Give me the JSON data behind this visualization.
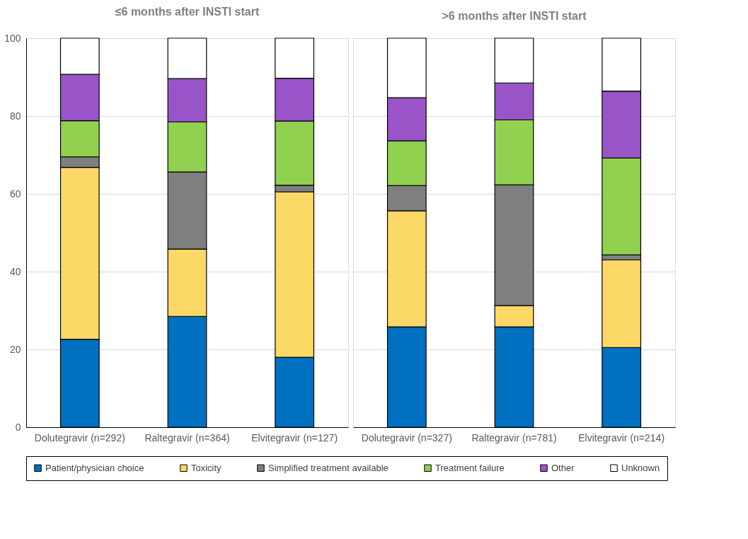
{
  "chart_data": [
    {
      "type": "bar",
      "stacked": true,
      "title": "≤6 months after INSTI start",
      "categories": [
        "Dolutegravir (n=292)",
        "Raltegravir (n=364)",
        "Elvitegravir (n=127)"
      ],
      "series": [
        {
          "name": "Patient/physician choice",
          "color": "#0070c0",
          "values": [
            22.6,
            28.5,
            18.0
          ]
        },
        {
          "name": "Toxicity",
          "color": "#fcd866",
          "values": [
            44.2,
            17.3,
            42.5
          ]
        },
        {
          "name": "Simplified treatment available",
          "color": "#7f7f7f",
          "values": [
            2.7,
            19.8,
            1.7
          ]
        },
        {
          "name": "Treatment failure",
          "color": "#92d050",
          "values": [
            9.3,
            12.9,
            16.5
          ]
        },
        {
          "name": "Other",
          "color": "#9955c8",
          "values": [
            11.9,
            11.1,
            11.0
          ]
        },
        {
          "name": "Unknown",
          "color": "#ffffff",
          "values": [
            9.3,
            10.4,
            10.3
          ]
        }
      ],
      "ylim": [
        0,
        100
      ],
      "yticks": [
        0,
        20,
        40,
        60,
        80,
        100
      ],
      "grid": "y",
      "legend": "bottom"
    },
    {
      "type": "bar",
      "stacked": true,
      "title": ">6 months after INSTI start",
      "categories": [
        "Dolutegravir (n=327)",
        "Raltegravir (n=781)",
        "Elvitegravir (n=214)"
      ],
      "series": [
        {
          "name": "Patient/physician choice",
          "color": "#0070c0",
          "values": [
            25.8,
            25.8,
            20.5
          ]
        },
        {
          "name": "Toxicity",
          "color": "#fcd866",
          "values": [
            29.8,
            5.5,
            22.5
          ]
        },
        {
          "name": "Simplified treatment available",
          "color": "#7f7f7f",
          "values": [
            6.5,
            31.0,
            1.3
          ]
        },
        {
          "name": "Treatment failure",
          "color": "#92d050",
          "values": [
            11.5,
            16.7,
            24.9
          ]
        },
        {
          "name": "Other",
          "color": "#9955c8",
          "values": [
            11.1,
            9.5,
            17.2
          ]
        },
        {
          "name": "Unknown",
          "color": "#ffffff",
          "values": [
            15.3,
            11.5,
            13.6
          ]
        }
      ],
      "ylim": [
        0,
        100
      ],
      "yticks": [
        0,
        20,
        40,
        60,
        80,
        100
      ],
      "grid": "y",
      "legend": "bottom",
      "tick_labels": "x"
    }
  ]
}
